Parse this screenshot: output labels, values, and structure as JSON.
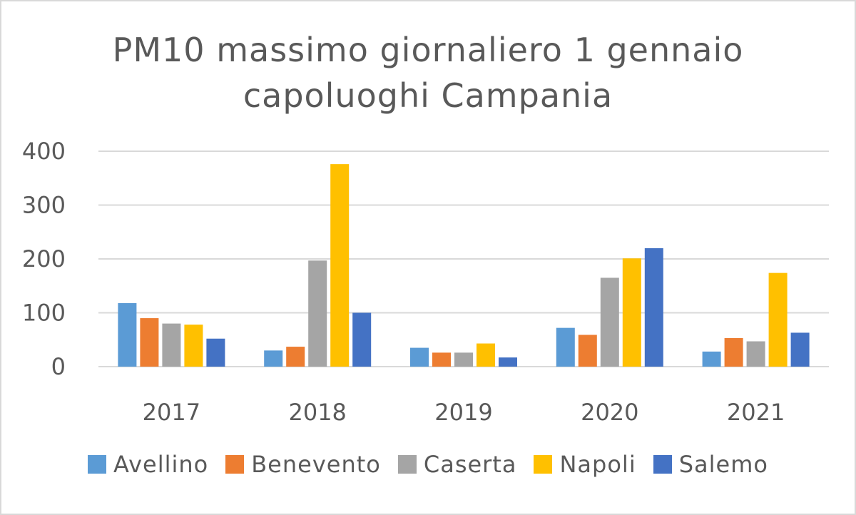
{
  "chart_data": {
    "type": "bar",
    "title": "PM10 massimo giornaliero 1 gennaio capoluoghi Campania",
    "title_lines": [
      "PM10 massimo giornaliero 1 gennaio",
      "capoluoghi Campania"
    ],
    "categories": [
      "2017",
      "2018",
      "2019",
      "2020",
      "2021"
    ],
    "series": [
      {
        "name": "Avellino",
        "color": "#5b9bd5",
        "values": [
          118,
          30,
          35,
          72,
          28
        ]
      },
      {
        "name": "Benevento",
        "color": "#ed7d31",
        "values": [
          90,
          37,
          26,
          59,
          53
        ]
      },
      {
        "name": "Caserta",
        "color": "#a5a5a5",
        "values": [
          80,
          197,
          26,
          165,
          47
        ]
      },
      {
        "name": "Napoli",
        "color": "#ffc000",
        "values": [
          78,
          376,
          43,
          201,
          174
        ]
      },
      {
        "name": "Salerno",
        "label": "Salemo",
        "color": "#4472c4",
        "values": [
          52,
          100,
          17,
          220,
          63
        ]
      }
    ],
    "ylim": [
      0,
      400
    ],
    "yticks": [
      "0",
      "100",
      "200",
      "300",
      "400"
    ],
    "grid": true,
    "legend": "bottom",
    "xlabel": "",
    "ylabel": ""
  }
}
